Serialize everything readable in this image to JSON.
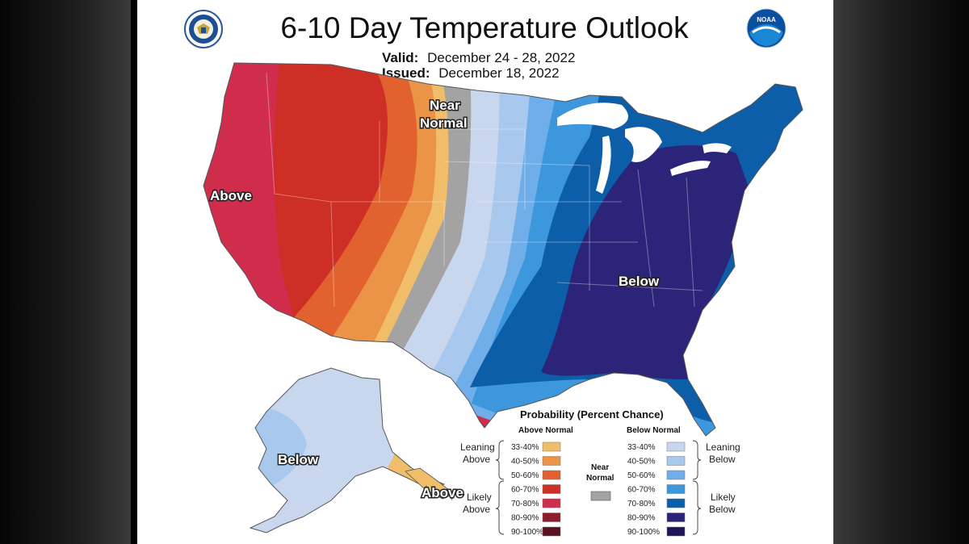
{
  "header": {
    "title": "6-10 Day Temperature Outlook",
    "valid_label": "Valid:",
    "valid_value": "December 24 - 28, 2022",
    "issued_label": "Issued:",
    "issued_value": "December 18, 2022",
    "left_logo": "commerce-seal-icon",
    "right_logo": "noaa-logo-icon",
    "noaa_text": "NOAA"
  },
  "map": {
    "labels": {
      "above_west": "Above",
      "near_normal_1": "Near",
      "near_normal_2": "Normal",
      "below_east": "Below",
      "alaska_below": "Below",
      "alaska_above": "Above"
    }
  },
  "legend": {
    "title": "Probability (Percent Chance)",
    "above_head": "Above Normal",
    "below_head": "Below Normal",
    "near_1": "Near",
    "near_2": "Normal",
    "leaning_above_1": "Leaning",
    "leaning_above_2": "Above",
    "likely_above_1": "Likely",
    "likely_above_2": "Above",
    "leaning_below_1": "Leaning",
    "leaning_below_2": "Below",
    "likely_below_1": "Likely",
    "likely_below_2": "Below",
    "above_items": [
      {
        "label": "33-40%",
        "color": "#f0bd6a"
      },
      {
        "label": "40-50%",
        "color": "#eb9447"
      },
      {
        "label": "50-60%",
        "color": "#e2622f"
      },
      {
        "label": "60-70%",
        "color": "#cd2e25"
      },
      {
        "label": "70-80%",
        "color": "#cf2d4b"
      },
      {
        "label": "80-90%",
        "color": "#8e1d2c"
      },
      {
        "label": "90-100%",
        "color": "#5c1120"
      }
    ],
    "below_items": [
      {
        "label": "33-40%",
        "color": "#c9d7ee"
      },
      {
        "label": "40-50%",
        "color": "#a8c8ee"
      },
      {
        "label": "50-60%",
        "color": "#6faee8"
      },
      {
        "label": "60-70%",
        "color": "#3c97dd"
      },
      {
        "label": "70-80%",
        "color": "#0d5ea8"
      },
      {
        "label": "80-90%",
        "color": "#2b2478"
      },
      {
        "label": "90-100%",
        "color": "#1e1456"
      }
    ],
    "near_color": "#a3a3a3"
  }
}
